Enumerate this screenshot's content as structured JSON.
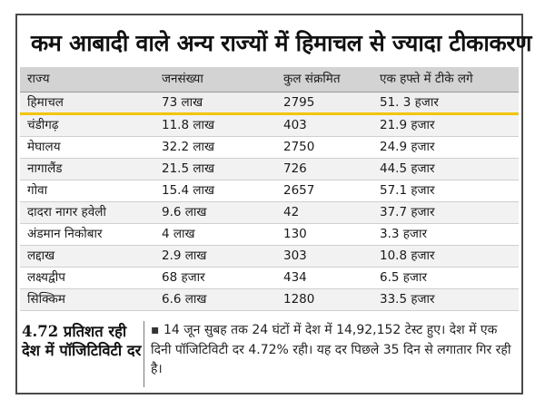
{
  "headline": "कम आबादी वाले अन्य राज्यों में हिमाचल से ज्यादा टीकाकरण",
  "table": {
    "columns": [
      "राज्य",
      "जनसंख्या",
      "कुल संक्रमित",
      "एक हफ्ते में टीके लगे"
    ],
    "rows": [
      [
        "हिमाचल",
        "73 लाख",
        "2795",
        "51. 3 हजार"
      ],
      [
        "चंडीगढ़",
        "11.8 लाख",
        "403",
        "21.9 हजार"
      ],
      [
        "मेघालय",
        "32.2 लाख",
        "2750",
        "24.9 हजार"
      ],
      [
        "नागालैंड",
        "21.5 लाख",
        "726",
        "44.5 हजार"
      ],
      [
        "गोवा",
        "15.4 लाख",
        "2657",
        "57.1 हजार"
      ],
      [
        "दादरा नागर हवेली",
        "9.6 लाख",
        "42",
        "37.7 हजार"
      ],
      [
        "अंडमान निकोबार",
        "4 लाख",
        "130",
        "3.3 हजार"
      ],
      [
        "लद्दाख",
        "2.9 लाख",
        "303",
        "10.8 हजार"
      ],
      [
        "लक्ष्यद्वीप",
        "68 हजार",
        "434",
        "6.5 हजार"
      ],
      [
        "सिक्किम",
        "6.6 लाख",
        "1280",
        "33.5 हजार"
      ]
    ]
  },
  "callout": {
    "title": "4.72 प्रतिशत रही देश में पॉजिटिविटी दर",
    "bullet": "▪",
    "body": "14 जून सुबह तक 24 घंटों में देश में 14,92,152 टेस्ट हुए। देश में एक दिनी पॉजिटिविटी दर 4.72% रही। यह दर पिछले 35 दिन से लगातार गिर रही है।"
  },
  "colors": {
    "highlight_underline": "#f3c400",
    "header_bg": "#d3d3d3"
  }
}
